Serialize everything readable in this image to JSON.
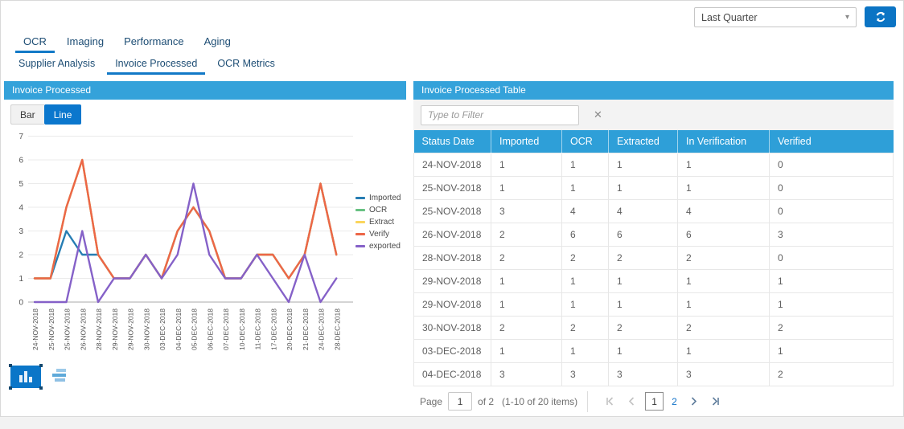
{
  "toolbar": {
    "period_select": {
      "value": "Last Quarter"
    }
  },
  "icons": {
    "dropdown_arrow": "▾",
    "refresh": "circular-arrows",
    "clear_filter": "✕",
    "chart_view": "vertical-bars",
    "list_view": "horizontal-bars",
    "first_page": "|<",
    "prev_page": "<",
    "next_page": ">",
    "last_page": ">|"
  },
  "tabs": {
    "primary": [
      {
        "label": "OCR",
        "active": true
      },
      {
        "label": "Imaging",
        "active": false
      },
      {
        "label": "Performance",
        "active": false
      },
      {
        "label": "Aging",
        "active": false
      }
    ],
    "secondary": [
      {
        "label": "Supplier Analysis",
        "active": false
      },
      {
        "label": "Invoice Processed",
        "active": true
      },
      {
        "label": "OCR Metrics",
        "active": false
      }
    ]
  },
  "chart_panel": {
    "title": "Invoice Processed",
    "toggle": {
      "bar_label": "Bar",
      "line_label": "Line",
      "active": "Line"
    }
  },
  "chart_data": {
    "type": "line",
    "title": "Invoice Processed",
    "x_labels": [
      "24-NOV-2018",
      "25-NOV-2018",
      "25-NOV-2018",
      "26-NOV-2018",
      "28-NOV-2018",
      "29-NOV-2018",
      "29-NOV-2018",
      "30-NOV-2018",
      "03-DEC-2018",
      "04-DEC-2018",
      "05-DEC-2018",
      "06-DEC-2018",
      "07-DEC-2018",
      "10-DEC-2018",
      "11-DEC-2018",
      "17-DEC-2018",
      "20-DEC-2018",
      "21-DEC-2018",
      "24-DEC-2018",
      "28-DEC-2018"
    ],
    "series": [
      {
        "name": "Imported",
        "color": "#267db3",
        "values": [
          1,
          1,
          3,
          2,
          2,
          1,
          1,
          2,
          1,
          3,
          4,
          3,
          1,
          1,
          2,
          2,
          1,
          2,
          5,
          2
        ]
      },
      {
        "name": "OCR",
        "color": "#68c182",
        "values": [
          1,
          1,
          4,
          6,
          2,
          1,
          1,
          2,
          1,
          3,
          4,
          3,
          1,
          1,
          2,
          2,
          1,
          2,
          5,
          2
        ]
      },
      {
        "name": "Extract",
        "color": "#fad55c",
        "values": [
          1,
          1,
          4,
          6,
          2,
          1,
          1,
          2,
          1,
          3,
          4,
          3,
          1,
          1,
          2,
          2,
          1,
          2,
          5,
          2
        ]
      },
      {
        "name": "Verify",
        "color": "#ed6647",
        "values": [
          1,
          1,
          4,
          6,
          2,
          1,
          1,
          2,
          1,
          3,
          4,
          3,
          1,
          1,
          2,
          2,
          1,
          2,
          5,
          2
        ]
      },
      {
        "name": "exported",
        "color": "#8561c8",
        "values": [
          0,
          0,
          0,
          3,
          0,
          1,
          1,
          2,
          1,
          2,
          5,
          2,
          1,
          1,
          2,
          1,
          0,
          2,
          0,
          1
        ]
      }
    ],
    "ylim": [
      0,
      7
    ],
    "y_ticks": [
      0,
      1,
      2,
      3,
      4,
      5,
      6,
      7
    ],
    "grid": true,
    "legend_position": "right"
  },
  "table_panel": {
    "title": "Invoice Processed Table",
    "filter_placeholder": "Type to Filter",
    "columns": [
      "Status Date",
      "Imported",
      "OCR",
      "Extracted",
      "In Verification",
      "Verified"
    ],
    "rows": [
      [
        "24-NOV-2018",
        "1",
        "1",
        "1",
        "1",
        "0"
      ],
      [
        "25-NOV-2018",
        "1",
        "1",
        "1",
        "1",
        "0"
      ],
      [
        "25-NOV-2018",
        "3",
        "4",
        "4",
        "4",
        "0"
      ],
      [
        "26-NOV-2018",
        "2",
        "6",
        "6",
        "6",
        "3"
      ],
      [
        "28-NOV-2018",
        "2",
        "2",
        "2",
        "2",
        "0"
      ],
      [
        "29-NOV-2018",
        "1",
        "1",
        "1",
        "1",
        "1"
      ],
      [
        "29-NOV-2018",
        "1",
        "1",
        "1",
        "1",
        "1"
      ],
      [
        "30-NOV-2018",
        "2",
        "2",
        "2",
        "2",
        "2"
      ],
      [
        "03-DEC-2018",
        "1",
        "1",
        "1",
        "1",
        "1"
      ],
      [
        "04-DEC-2018",
        "3",
        "3",
        "3",
        "3",
        "2"
      ]
    ],
    "pagination": {
      "page_label": "Page",
      "page_value": "1",
      "of_label": "of 2",
      "items_label": "(1-10 of 20 items)",
      "pages": [
        "1",
        "2"
      ],
      "current_page": "1"
    }
  },
  "colors": {
    "panel_header": "#34a2da",
    "table_header": "#2e9fd8",
    "active_button": "#0b77cd",
    "refresh_button": "#0b74c4",
    "tab_text": "#1d4d74",
    "tab_underline": "#1279c7",
    "page_link": "#0f71c8"
  }
}
